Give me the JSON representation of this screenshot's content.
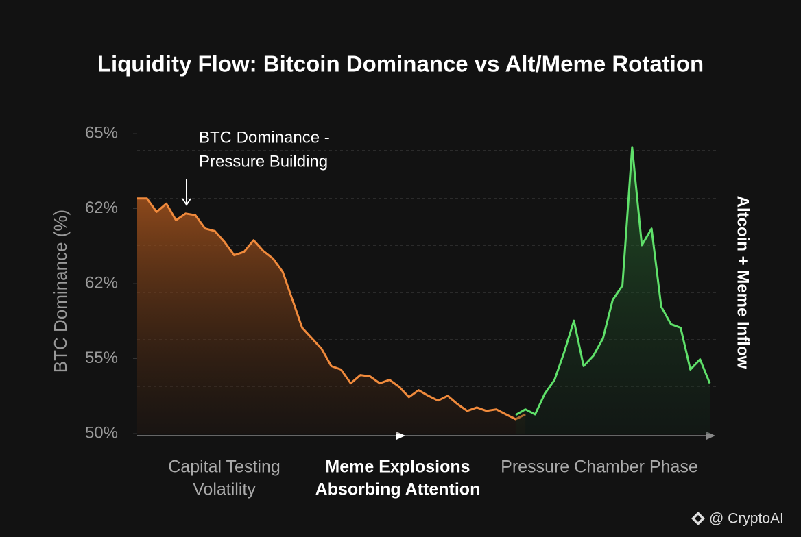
{
  "chart_data": {
    "type": "area",
    "title": "Liquidity Flow: Bitcoin Dominance vs Alt/Meme Rotation",
    "y_label": "BTC Dominance (%)",
    "y2_label": "Altcoin + Meme Inflow",
    "annotation": [
      "BTC Dominance -",
      "Pressure Building"
    ],
    "phases": [
      [
        "Capital Testing",
        "Volatility"
      ],
      [
        "Meme Explosions",
        "Absorbing Attention"
      ],
      [
        "Pressure Chamber Phase"
      ]
    ],
    "watermark": "@ CryptoAI",
    "ylim": [
      50,
      65
    ],
    "yticks": [
      {
        "value": 50,
        "label": "50%"
      },
      {
        "value": 55,
        "label": "55%"
      },
      {
        "value": 61.5,
        "label": "62%"
      },
      {
        "value": 62.4,
        "label": "62%"
      },
      {
        "value": 65,
        "label": "65%"
      }
    ],
    "series": [
      {
        "name": "BTC Dominance",
        "color": "#f08a3c",
        "values": [
          62.75,
          62.75,
          62.36,
          62.57,
          62.26,
          62.34,
          62.32,
          62.16,
          62.13,
          62.0,
          61.84,
          61.88,
          62.02,
          61.89,
          61.8,
          61.64,
          60.1,
          57.67,
          56.76,
          55.85,
          54.5,
          54.27,
          53.35,
          53.9,
          53.81,
          53.35,
          53.58,
          53.12,
          52.43,
          52.89,
          52.52,
          52.2,
          52.52,
          51.97,
          51.51,
          51.74,
          51.51,
          51.61,
          51.28,
          50.96,
          51.28,
          null,
          null,
          null,
          null,
          null,
          null,
          null,
          null,
          null,
          null,
          null,
          null,
          null,
          null,
          null,
          null,
          null,
          null,
          null
        ]
      },
      {
        "name": "Altcoin + Meme Inflow",
        "color": "#5fe06a",
        "values": [
          null,
          null,
          null,
          null,
          null,
          null,
          null,
          null,
          null,
          null,
          null,
          null,
          null,
          null,
          null,
          null,
          null,
          null,
          null,
          null,
          null,
          null,
          null,
          null,
          null,
          null,
          null,
          null,
          null,
          null,
          null,
          null,
          null,
          null,
          null,
          null,
          null,
          null,
          null,
          51.24,
          51.61,
          51.28,
          52.66,
          53.58,
          55.55,
          58.28,
          54.5,
          55.24,
          56.76,
          60.1,
          61.32,
          64.53,
          61.96,
          62.16,
          59.5,
          57.98,
          57.67,
          54.27,
          54.95,
          53.35
        ]
      }
    ]
  }
}
